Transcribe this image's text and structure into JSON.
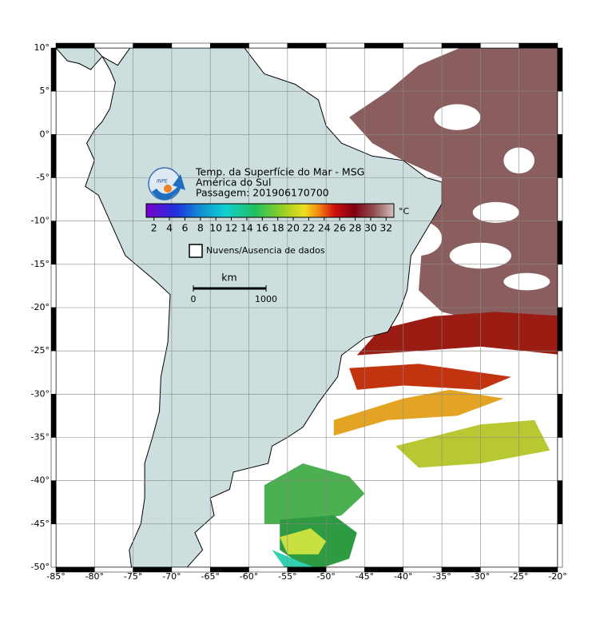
{
  "title_lines": [
    "Temp. da Superfície do Mar - MSG",
    "América do Sul",
    "Passagem: 201906170700"
  ],
  "logo": "INPE",
  "colorbar": {
    "unit": "°C",
    "range": [
      1,
      33
    ],
    "ticks": [
      2,
      4,
      6,
      8,
      10,
      12,
      14,
      16,
      18,
      20,
      22,
      24,
      26,
      28,
      30,
      32
    ]
  },
  "legend": "Nuvens/Ausencia de dados",
  "scale_bar": {
    "unit": "km",
    "labels": [
      0,
      1000
    ]
  },
  "map": {
    "lonlim": [
      -85,
      -20
    ],
    "latlim": [
      -50,
      10
    ],
    "lon_ticks": [
      {
        "value": -85,
        "label": "-85°"
      },
      {
        "value": -80,
        "label": "-80°"
      },
      {
        "value": -75,
        "label": "-75°"
      },
      {
        "value": -70,
        "label": "-70°"
      },
      {
        "value": -65,
        "label": "-65°"
      },
      {
        "value": -60,
        "label": "-60°"
      },
      {
        "value": -55,
        "label": "-55°"
      },
      {
        "value": -50,
        "label": "-50°"
      },
      {
        "value": -45,
        "label": "-45°"
      },
      {
        "value": -40,
        "label": "-40°"
      },
      {
        "value": -35,
        "label": "-35°"
      },
      {
        "value": -30,
        "label": "-30°"
      },
      {
        "value": -25,
        "label": "-25°"
      },
      {
        "value": -20,
        "label": "-20°"
      }
    ],
    "lat_ticks": [
      {
        "value": 10,
        "label": "10°"
      },
      {
        "value": 5,
        "label": "5°"
      },
      {
        "value": 0,
        "label": "0°"
      },
      {
        "value": -5,
        "label": "-5°"
      },
      {
        "value": -10,
        "label": "-10°"
      },
      {
        "value": -15,
        "label": "-15°"
      },
      {
        "value": -20,
        "label": "-20°"
      },
      {
        "value": -25,
        "label": "-25°"
      },
      {
        "value": -30,
        "label": "-30°"
      },
      {
        "value": -35,
        "label": "-35°"
      },
      {
        "value": -40,
        "label": "-40°"
      },
      {
        "value": -45,
        "label": "-45°"
      },
      {
        "value": -50,
        "label": "-50°"
      }
    ]
  }
}
